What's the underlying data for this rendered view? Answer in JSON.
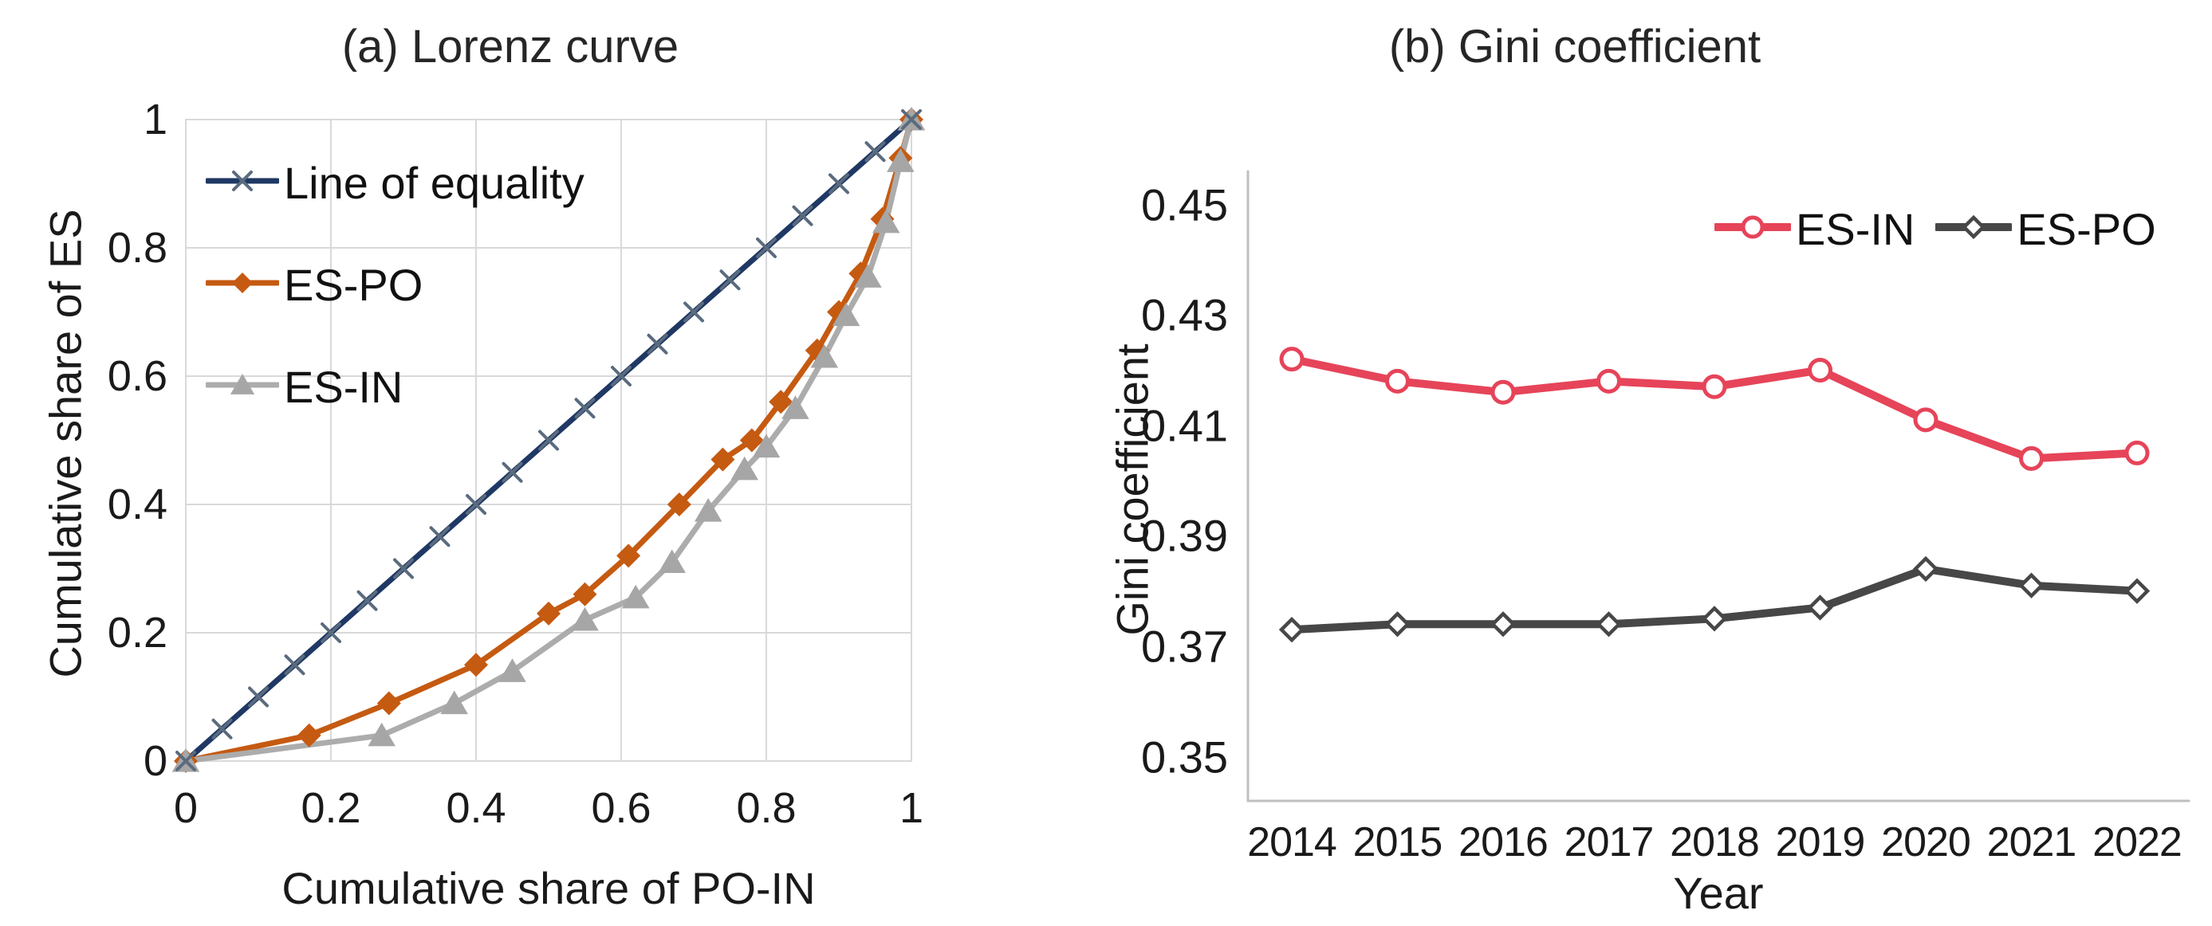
{
  "figure": {
    "background": "#ffffff",
    "text_color": "#1a1a1a",
    "gridline_color": "#D9D9D9",
    "axisline_color": "#BFBFBF"
  },
  "chart_data": [
    {
      "type": "line",
      "panel": "a",
      "title": "(a) Lorenz curve",
      "xlabel": "Cumulative share of PO-IN",
      "ylabel": "Cumulative share of ES",
      "xlim": [
        0,
        1
      ],
      "ylim": [
        0,
        1
      ],
      "xticks": [
        "0",
        "0.2",
        "0.4",
        "0.6",
        "0.8",
        "1"
      ],
      "xtick_values": [
        0,
        0.2,
        0.4,
        0.6,
        0.8,
        1
      ],
      "yticks": [
        "0",
        "0.2",
        "0.4",
        "0.6",
        "0.8",
        "1"
      ],
      "ytick_values": [
        0,
        0.2,
        0.4,
        0.6,
        0.8,
        1
      ],
      "grid": true,
      "legend_position": "top-left",
      "series": [
        {
          "name": "Line of equality",
          "color": "#1F3864",
          "marker": "x",
          "marker_color": "#5A6B7E",
          "line_width": 7,
          "x": [
            0,
            0.05,
            0.1,
            0.15,
            0.2,
            0.25,
            0.3,
            0.35,
            0.4,
            0.45,
            0.5,
            0.55,
            0.6,
            0.65,
            0.7,
            0.75,
            0.8,
            0.85,
            0.9,
            0.95,
            1
          ],
          "y": [
            0,
            0.05,
            0.1,
            0.15,
            0.2,
            0.25,
            0.3,
            0.35,
            0.4,
            0.45,
            0.5,
            0.55,
            0.6,
            0.65,
            0.7,
            0.75,
            0.8,
            0.85,
            0.9,
            0.95,
            1
          ]
        },
        {
          "name": "ES-PO",
          "color": "#C55A11",
          "marker": "diamond",
          "marker_color": "#C55A11",
          "line_width": 7,
          "x": [
            0,
            0.17,
            0.28,
            0.4,
            0.5,
            0.55,
            0.61,
            0.68,
            0.74,
            0.78,
            0.82,
            0.87,
            0.9,
            0.93,
            0.96,
            0.985,
            1
          ],
          "y": [
            0,
            0.04,
            0.09,
            0.15,
            0.23,
            0.26,
            0.32,
            0.4,
            0.47,
            0.5,
            0.56,
            0.64,
            0.7,
            0.76,
            0.845,
            0.94,
            1
          ]
        },
        {
          "name": "ES-IN",
          "color": "#ACACAC",
          "marker": "triangle",
          "marker_color": "#A6A6A6",
          "line_width": 7,
          "x": [
            0,
            0.27,
            0.37,
            0.45,
            0.55,
            0.62,
            0.67,
            0.72,
            0.77,
            0.8,
            0.84,
            0.88,
            0.91,
            0.94,
            0.965,
            0.985,
            1
          ],
          "y": [
            0,
            0.04,
            0.09,
            0.14,
            0.22,
            0.255,
            0.31,
            0.39,
            0.455,
            0.49,
            0.55,
            0.63,
            0.695,
            0.755,
            0.84,
            0.935,
            1
          ]
        }
      ]
    },
    {
      "type": "line",
      "panel": "b",
      "title": "(b) Gini coefficient",
      "xlabel": "Year",
      "ylabel": "Gini coefficient",
      "categories": [
        "2014",
        "2015",
        "2016",
        "2017",
        "2018",
        "2019",
        "2020",
        "2021",
        "2022"
      ],
      "ylim": [
        0.35,
        0.45
      ],
      "yticks": [
        "0.35",
        "0.37",
        "0.39",
        "0.41",
        "0.43",
        "0.45"
      ],
      "ytick_values": [
        0.35,
        0.37,
        0.39,
        0.41,
        0.43,
        0.45
      ],
      "grid": false,
      "legend_position": "top-right",
      "series": [
        {
          "name": "ES-IN",
          "color": "#E64459",
          "marker": "circle-open",
          "marker_color": "#E64459",
          "line_width": 10,
          "values": [
            0.422,
            0.418,
            0.416,
            0.418,
            0.417,
            0.42,
            0.411,
            0.404,
            0.405
          ]
        },
        {
          "name": "ES-PO",
          "color": "#474747",
          "marker": "diamond-open",
          "marker_color": "#474747",
          "line_width": 10,
          "values": [
            0.373,
            0.374,
            0.374,
            0.374,
            0.375,
            0.377,
            0.384,
            0.381,
            0.38
          ]
        }
      ]
    }
  ]
}
